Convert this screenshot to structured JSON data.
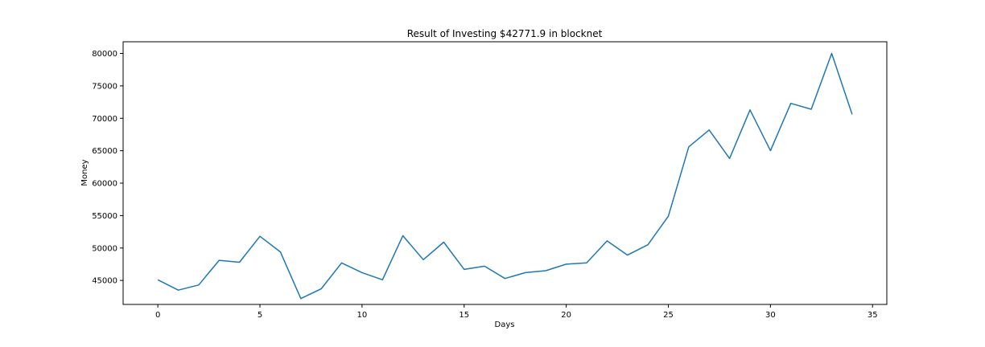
{
  "chart_data": {
    "type": "line",
    "title": "Result of Investing $42771.9 in blocknet",
    "xlabel": "Days",
    "ylabel": "Money",
    "xlim": [
      -1.7,
      35.7
    ],
    "ylim": [
      41300,
      81800
    ],
    "xticks": [
      0,
      5,
      10,
      15,
      20,
      25,
      30,
      35
    ],
    "yticks": [
      45000,
      50000,
      55000,
      60000,
      65000,
      70000,
      75000,
      80000
    ],
    "grid": false,
    "legend": false,
    "colors": {
      "line": "#1f77b4",
      "axes": "#000000",
      "background": "#ffffff"
    },
    "series": [
      {
        "x": [
          0,
          1,
          2,
          3,
          4,
          5,
          6,
          7,
          8,
          9,
          10,
          11,
          12,
          13,
          14,
          15,
          16,
          17,
          18,
          19,
          20,
          21,
          22,
          23,
          24,
          25,
          26,
          27,
          28,
          29,
          30,
          31,
          32,
          33,
          34
        ],
        "values": [
          45100,
          43500,
          44300,
          48100,
          47800,
          51800,
          49400,
          42200,
          43700,
          47700,
          46200,
          45100,
          51900,
          48200,
          50900,
          46700,
          47200,
          45300,
          46200,
          46500,
          47500,
          47700,
          51100,
          48900,
          50500,
          54900,
          65600,
          68200,
          63800,
          71300,
          65000,
          72300,
          71400,
          80000,
          70600
        ]
      }
    ]
  }
}
